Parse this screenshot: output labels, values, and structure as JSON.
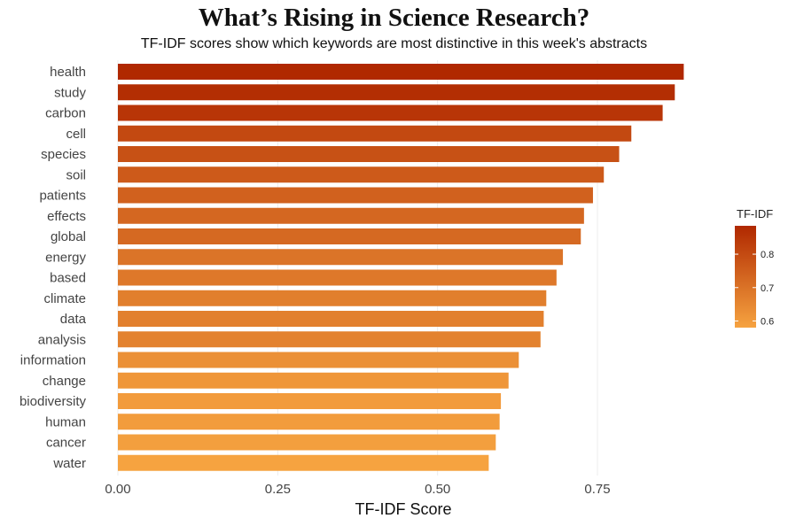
{
  "chart_data": {
    "type": "bar",
    "orientation": "horizontal",
    "title": "What’s Rising in Science Research?",
    "subtitle": "TF-IDF scores show which keywords are most distinctive in this week's abstracts",
    "xlabel": "TF-IDF Score",
    "ylabel": "",
    "xlim": [
      0,
      0.89
    ],
    "x_ticks": [
      "0.00",
      "0.25",
      "0.50",
      "0.75"
    ],
    "x_tick_values": [
      0,
      0.25,
      0.5,
      0.75
    ],
    "grid": "vertical major lines",
    "categories": [
      "health",
      "study",
      "carbon",
      "cell",
      "species",
      "soil",
      "patients",
      "effects",
      "global",
      "energy",
      "based",
      "climate",
      "data",
      "analysis",
      "information",
      "change",
      "biodiversity",
      "human",
      "cancer",
      "water"
    ],
    "values": [
      0.885,
      0.871,
      0.852,
      0.803,
      0.784,
      0.76,
      0.743,
      0.729,
      0.724,
      0.696,
      0.686,
      0.67,
      0.666,
      0.661,
      0.627,
      0.611,
      0.599,
      0.597,
      0.591,
      0.58
    ],
    "legend": {
      "title": "TF-IDF",
      "placement": "right",
      "ticks": [
        "0.8",
        "0.7",
        "0.6"
      ],
      "tick_values": [
        0.8,
        0.7,
        0.6
      ],
      "range": [
        0.58,
        0.885
      ],
      "color_low": "#f6a340",
      "color_high": "#b02800"
    }
  }
}
